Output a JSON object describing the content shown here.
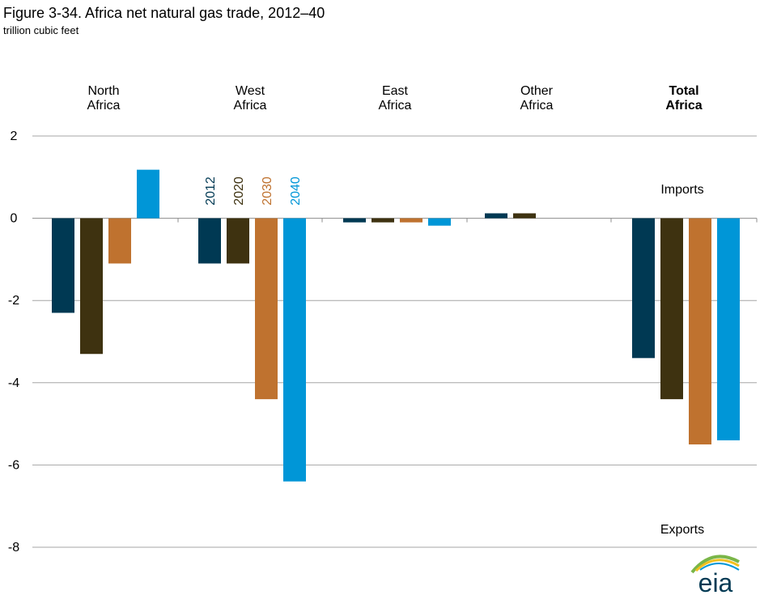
{
  "title": "Figure 3-34. Africa net natural gas trade, 2012–40",
  "subtitle": "trillion cubic feet",
  "annotations": {
    "imports": "Imports",
    "exports": "Exports"
  },
  "logo_text": "eia",
  "colors": {
    "2012": "#003953",
    "2020": "#3e3210",
    "2030": "#bf722f",
    "2040": "#0096d7",
    "grid": "#a6a6a6",
    "logo_arc_green": "#7ab648",
    "logo_arc_yellow": "#f2c01e",
    "logo_arc_blue": "#0096d7"
  },
  "chart_data": {
    "type": "bar",
    "categories": [
      [
        "North",
        "Africa"
      ],
      [
        "West",
        "Africa"
      ],
      [
        "East",
        "Africa"
      ],
      [
        "Other",
        "Africa"
      ],
      [
        "Total",
        "Africa"
      ]
    ],
    "bold_categories": [
      4
    ],
    "series": [
      {
        "name": "2012",
        "values": [
          -2.3,
          -1.1,
          -0.1,
          0.12,
          -3.4
        ]
      },
      {
        "name": "2020",
        "values": [
          -3.3,
          -1.1,
          -0.1,
          0.12,
          -4.4
        ]
      },
      {
        "name": "2030",
        "values": [
          -1.1,
          -4.4,
          -0.1,
          null,
          -5.5
        ]
      },
      {
        "name": "2040",
        "values": [
          1.18,
          -6.4,
          -0.18,
          null,
          -5.4
        ]
      }
    ],
    "legend_group": 1,
    "ylim": [
      -8,
      2
    ],
    "yticks": [
      2,
      0,
      -2,
      -4,
      -6,
      -8
    ],
    "grid": true,
    "xlabel": "",
    "ylabel": ""
  }
}
